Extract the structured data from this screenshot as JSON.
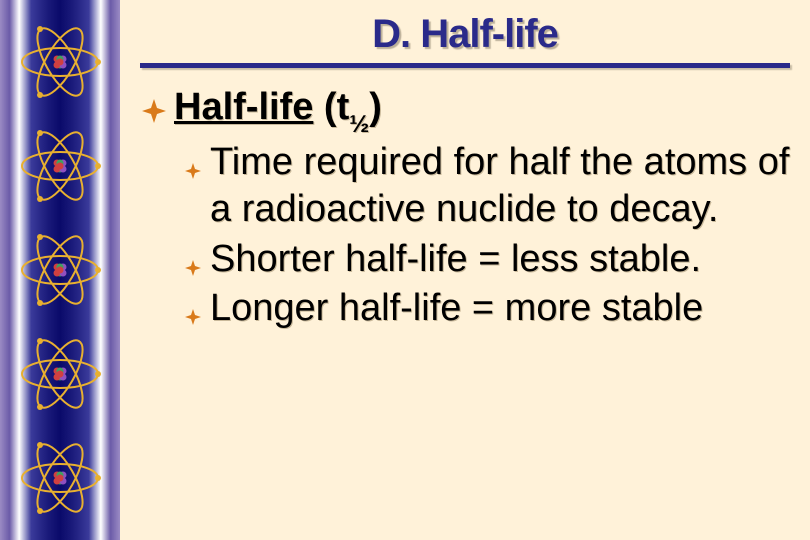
{
  "slide": {
    "title": "D. Half-life",
    "level1_key": "Half-life",
    "level1_rest_pre": " (t",
    "level1_sub": "½",
    "level1_rest_post": ")",
    "bullets": [
      "Time required for half the atoms of a radioactive nuclide to decay.",
      "Shorter half-life = less stable.",
      "Longer half-life = more stable"
    ]
  },
  "style": {
    "background_color": "#fff2d9",
    "title_color": "#2a2a8a",
    "bullet_color": "#d97a1a",
    "text_color": "#000000",
    "title_fontsize": 40,
    "body_fontsize": 38,
    "atom_orbit_color": "#e8b030",
    "atom_nucleus_colors": [
      "#d04040",
      "#9050c0",
      "#40a060"
    ],
    "sidebar_gradient": [
      "#9b8bc4",
      "#6b5ba8",
      "#ffffff",
      "#3a3a9a",
      "#1a1a7a",
      "#0a0a6a"
    ]
  }
}
